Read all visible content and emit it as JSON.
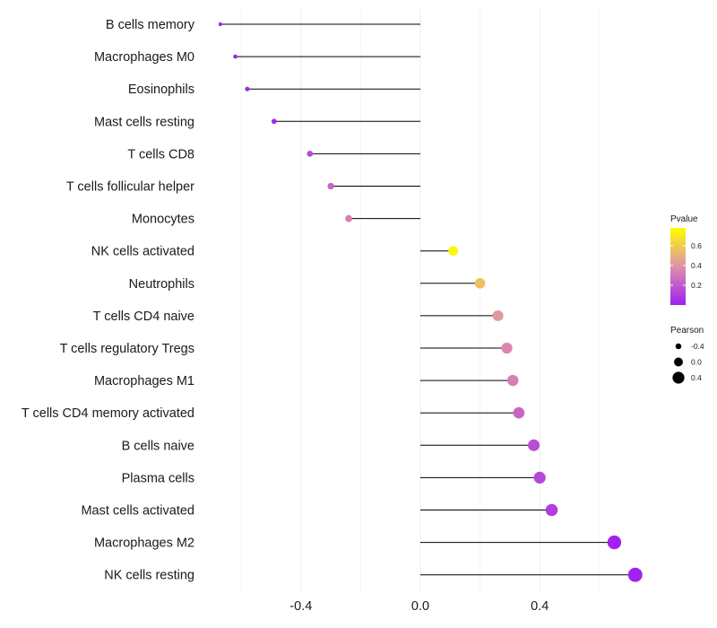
{
  "chart_data": {
    "type": "lollipop",
    "categories": [
      "B cells memory",
      "Macrophages M0",
      "Eosinophils",
      "Mast cells resting",
      "T cells CD8",
      "T cells follicular helper",
      "Monocytes",
      "NK cells activated",
      "Neutrophils",
      "T cells CD4 naive",
      "T cells regulatory  Tregs ",
      "Macrophages M1",
      "T cells CD4 memory activated",
      "B cells naive",
      "Plasma cells",
      "Mast cells activated",
      "Macrophages M2",
      "NK cells resting"
    ],
    "pearson": [
      -0.67,
      -0.62,
      -0.58,
      -0.49,
      -0.37,
      -0.3,
      -0.24,
      0.11,
      0.2,
      0.26,
      0.29,
      0.31,
      0.33,
      0.38,
      0.4,
      0.44,
      0.65,
      0.72
    ],
    "pvalue": [
      0.002,
      0.005,
      0.01,
      0.03,
      0.15,
      0.24,
      0.33,
      0.75,
      0.56,
      0.42,
      0.36,
      0.33,
      0.24,
      0.16,
      0.14,
      0.1,
      0.005,
      0.002
    ],
    "xlim": [
      -0.74,
      0.78
    ],
    "x_ticks": [
      -0.4,
      0.0,
      0.4
    ],
    "x_tick_labels": [
      "-0.4",
      "0.0",
      "0.4"
    ],
    "xlabel": "",
    "ylabel": "",
    "grid": true,
    "color_legend": {
      "title": "Pvalue",
      "ticks": [
        0.2,
        0.4,
        0.6
      ],
      "tick_labels": [
        "0.2",
        "0.4",
        "0.6"
      ],
      "range": [
        0.0,
        0.78
      ],
      "colors": [
        "#a020f0",
        "#e090a8",
        "#ffff00"
      ]
    },
    "size_legend": {
      "title": "Pearson",
      "ticks": [
        -0.4,
        0.0,
        0.4
      ],
      "tick_labels": [
        "-0.4",
        "0.0",
        "0.4"
      ]
    }
  }
}
